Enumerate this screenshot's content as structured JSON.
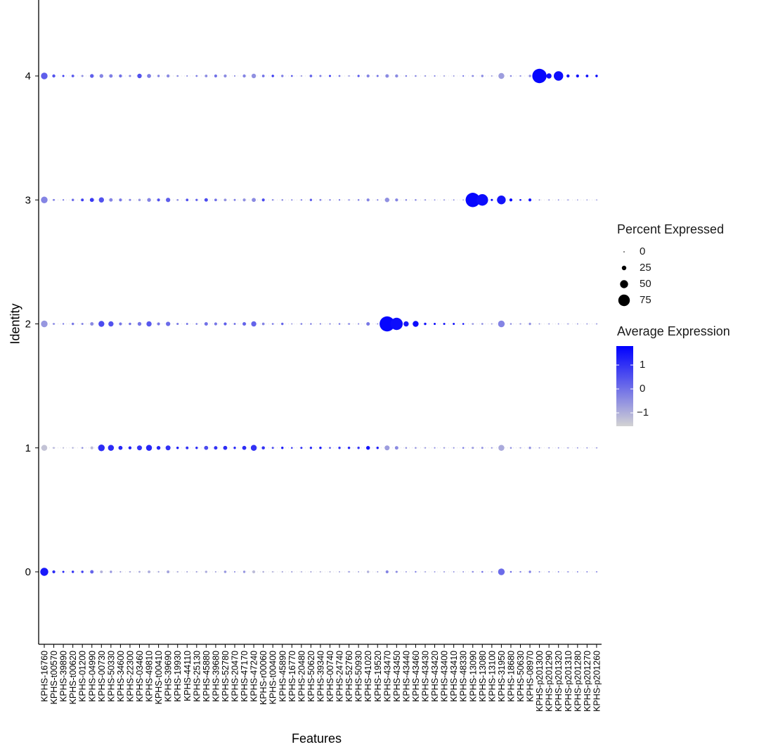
{
  "chart_data": {
    "type": "dotplot",
    "xlabel": "Features",
    "ylabel": "Identity",
    "identities": [
      "0",
      "1",
      "2",
      "3",
      "4"
    ],
    "features": [
      "KPHS-16760",
      "KPHS-t00570",
      "KPHS-39890",
      "KPHS-t00620",
      "KPHS-01200",
      "KPHS-04990",
      "KPHS-00730",
      "KPHS-50330",
      "KPHS-34600",
      "KPHS-22300",
      "KPHS-03460",
      "KPHS-49810",
      "KPHS-t00410",
      "KPHS-39690",
      "KPHS-19930",
      "KPHS-44110",
      "KPHS-25130",
      "KPHS-45880",
      "KPHS-39680",
      "KPHS-52780",
      "KPHS-20470",
      "KPHS-47170",
      "KPHS-47240",
      "KPHS-r00060",
      "KPHS-t00400",
      "KPHS-45890",
      "KPHS-16770",
      "KPHS-20480",
      "KPHS-50620",
      "KPHS-39340",
      "KPHS-00740",
      "KPHS-24740",
      "KPHS-52760",
      "KPHS-50930",
      "KPHS-41020",
      "KPHS-19520",
      "KPHS-43470",
      "KPHS-43450",
      "KPHS-43440",
      "KPHS-43460",
      "KPHS-43430",
      "KPHS-43420",
      "KPHS-43400",
      "KPHS-43410",
      "KPHS-48330",
      "KPHS-13090",
      "KPHS-13080",
      "KPHS-13100",
      "KPHS-31950",
      "KPHS-18680",
      "KPHS-50630",
      "KPHS-08970",
      "KPHS-p201300",
      "KPHS-p201290",
      "KPHS-p201320",
      "KPHS-p201310",
      "KPHS-p201280",
      "KPHS-p201270",
      "KPHS-p201260"
    ],
    "pct_expressed": {
      "0": [
        50,
        14,
        8,
        10,
        10,
        18,
        12,
        10,
        4,
        4,
        7,
        12,
        5,
        13,
        4,
        4,
        4,
        9,
        4,
        10,
        4,
        10,
        14,
        6,
        4,
        4,
        4,
        3,
        4,
        3,
        3,
        3,
        5,
        3,
        10,
        3,
        14,
        8,
        3,
        5,
        3,
        3,
        3,
        3,
        3,
        5,
        6,
        3,
        40,
        6,
        4,
        10,
        3,
        3,
        3,
        3,
        3,
        3,
        3
      ],
      "1": [
        35,
        6,
        4,
        5,
        6,
        14,
        40,
        35,
        22,
        15,
        28,
        35,
        20,
        28,
        10,
        13,
        10,
        22,
        18,
        22,
        10,
        22,
        35,
        16,
        8,
        10,
        6,
        8,
        10,
        10,
        7,
        10,
        10,
        10,
        20,
        10,
        28,
        18,
        6,
        6,
        4,
        4,
        4,
        4,
        6,
        8,
        8,
        4,
        35,
        6,
        3,
        10,
        3,
        3,
        3,
        3,
        3,
        3,
        3
      ],
      "2": [
        40,
        7,
        5,
        10,
        8,
        18,
        35,
        30,
        14,
        10,
        20,
        30,
        14,
        24,
        8,
        8,
        6,
        18,
        14,
        14,
        8,
        18,
        30,
        12,
        6,
        10,
        3,
        6,
        6,
        4,
        4,
        6,
        6,
        4,
        18,
        3,
        100,
        80,
        30,
        35,
        10,
        8,
        8,
        8,
        6,
        6,
        7,
        3,
        40,
        6,
        4,
        10,
        3,
        3,
        3,
        3,
        3,
        3,
        3
      ],
      "3": [
        40,
        7,
        5,
        10,
        13,
        22,
        30,
        18,
        14,
        8,
        11,
        20,
        14,
        24,
        6,
        12,
        9,
        18,
        12,
        12,
        8,
        14,
        22,
        14,
        5,
        6,
        4,
        4,
        10,
        7,
        5,
        5,
        4,
        6,
        14,
        4,
        25,
        14,
        6,
        6,
        4,
        3,
        3,
        3,
        2,
        95,
        75,
        8,
        55,
        14,
        6,
        14,
        3,
        3,
        3,
        3,
        2,
        2,
        2
      ],
      "4": [
        40,
        15,
        8,
        12,
        8,
        20,
        20,
        18,
        15,
        8,
        25,
        22,
        10,
        15,
        6,
        4,
        7,
        12,
        14,
        14,
        4,
        15,
        25,
        12,
        10,
        10,
        7,
        4,
        12,
        8,
        8,
        7,
        4,
        9,
        14,
        8,
        18,
        15,
        6,
        6,
        4,
        4,
        3,
        3,
        4,
        7,
        10,
        3,
        35,
        6,
        4,
        10,
        95,
        30,
        60,
        15,
        14,
        12,
        10
      ]
    },
    "avg_expression": {
      "0": [
        1.4,
        1.1,
        1.2,
        1.0,
        0.8,
        0.2,
        -1.0,
        -0.6,
        -0.8,
        -0.8,
        -0.9,
        -0.9,
        -0.9,
        -0.8,
        -0.9,
        -0.9,
        -0.8,
        -0.9,
        -0.9,
        -0.6,
        -0.6,
        -0.6,
        -1.2,
        -1.0,
        -1.0,
        -0.9,
        -0.8,
        -0.9,
        -0.9,
        -1.0,
        -1.0,
        -0.8,
        -0.6,
        -0.8,
        -1.0,
        -0.8,
        -0.3,
        -0.4,
        -0.6,
        -0.3,
        -0.7,
        -0.6,
        -0.6,
        -0.6,
        -0.5,
        -0.3,
        0.0,
        -0.6,
        0.1,
        0.0,
        -0.1,
        -0.2,
        -0.3,
        -0.3,
        -0.3,
        -0.3,
        -0.3,
        -0.3,
        -0.3
      ],
      "1": [
        -1.3,
        -1.0,
        -1.2,
        -1.0,
        -0.5,
        -1.2,
        1.1,
        1.1,
        1.2,
        1.3,
        1.0,
        1.2,
        1.2,
        1.0,
        1.4,
        1.0,
        1.2,
        0.6,
        1.0,
        1.1,
        1.2,
        1.1,
        1.0,
        1.0,
        0.6,
        1.4,
        0.8,
        1.1,
        1.1,
        1.4,
        0.3,
        1.0,
        1.2,
        1.0,
        1.5,
        1.4,
        -0.7,
        -0.4,
        -0.6,
        -0.6,
        -0.6,
        -0.5,
        -0.6,
        -0.6,
        -0.2,
        -0.6,
        -0.5,
        -0.6,
        -0.9,
        -0.5,
        -0.6,
        -0.5,
        -0.6,
        -0.6,
        -0.6,
        -0.6,
        -0.6,
        -0.6,
        -0.6
      ],
      "2": [
        -0.6,
        -0.3,
        -0.2,
        -0.1,
        -0.3,
        -0.4,
        0.6,
        0.5,
        -0.1,
        0.0,
        -0.1,
        0.4,
        -0.1,
        0.1,
        -0.1,
        -0.1,
        -0.2,
        0.0,
        -0.1,
        0.3,
        -0.1,
        0.2,
        0.2,
        -0.3,
        -0.1,
        0.2,
        -0.6,
        -0.2,
        -0.3,
        -0.4,
        -0.4,
        -0.2,
        -0.2,
        -0.5,
        -0.1,
        -0.5,
        1.7,
        1.6,
        1.4,
        1.6,
        1.5,
        1.6,
        1.4,
        1.5,
        1.6,
        -0.5,
        -0.5,
        -0.6,
        -0.3,
        -0.5,
        -0.5,
        -0.5,
        -0.6,
        -0.6,
        -0.6,
        -0.6,
        -0.6,
        -0.6,
        -0.6
      ],
      "3": [
        -0.3,
        -0.1,
        -0.3,
        0.1,
        0.8,
        0.9,
        0.5,
        -0.3,
        -0.1,
        -0.2,
        -0.6,
        -0.3,
        0.5,
        0.3,
        -0.4,
        0.5,
        0.3,
        0.6,
        0.0,
        -0.5,
        -0.2,
        -0.5,
        -0.4,
        0.6,
        -0.3,
        -0.5,
        -0.4,
        -0.1,
        0.3,
        -0.3,
        -0.3,
        -0.2,
        -0.3,
        -0.3,
        -0.3,
        -0.3,
        -0.5,
        -0.3,
        -0.4,
        -0.4,
        -0.5,
        -0.5,
        -0.5,
        -0.5,
        -0.5,
        1.7,
        1.6,
        1.7,
        1.5,
        1.7,
        1.7,
        1.5,
        -0.6,
        -0.6,
        -0.5,
        -0.5,
        -0.6,
        -0.6,
        -0.6
      ],
      "4": [
        0.3,
        0.5,
        0.8,
        0.4,
        -0.5,
        0.3,
        -0.3,
        -0.2,
        0.0,
        -0.3,
        0.5,
        -0.2,
        -0.3,
        -0.4,
        -0.4,
        -0.5,
        -0.2,
        -0.4,
        0.0,
        -0.4,
        -0.5,
        -0.3,
        -0.5,
        0.0,
        0.9,
        -0.2,
        0.3,
        -0.6,
        0.2,
        -0.2,
        0.8,
        -0.1,
        -0.6,
        0.4,
        -0.3,
        0.0,
        -0.4,
        -0.4,
        -0.3,
        -0.4,
        -0.5,
        -0.3,
        -0.6,
        -0.6,
        0.0,
        -0.3,
        -0.4,
        -0.6,
        -0.7,
        -0.4,
        -0.4,
        -0.5,
        1.7,
        1.6,
        1.6,
        1.5,
        1.6,
        1.6,
        1.7
      ]
    },
    "color_scale": {
      "low": "#D3D3D3",
      "high": "#0000FF",
      "range": [
        -1.56,
        1.8
      ]
    },
    "size_legend": {
      "title": "Percent Expressed",
      "breaks": [
        0,
        25,
        50,
        75
      ],
      "labels": [
        "0",
        "25",
        "50",
        "75"
      ]
    },
    "color_legend": {
      "title": "Average Expression",
      "breaks": [
        1,
        0,
        -1
      ],
      "labels": [
        "1",
        "0",
        "−1"
      ]
    },
    "legend_position": "right",
    "grid": false
  }
}
